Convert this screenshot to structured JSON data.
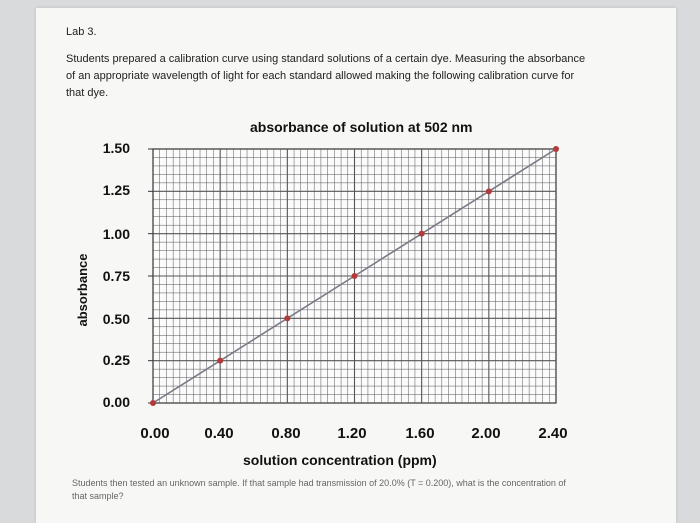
{
  "document": {
    "lab_title": "Lab 3.",
    "intro": "Students prepared a calibration curve using standard solutions of a certain dye. Measuring the absorbance of an appropriate wavelength of light for each standard allowed making the following calibration curve for that dye.",
    "question": "Students then tested an unknown sample. If that sample had transmission of 20.0% (T = 0.200), what is the concentration of that sample?"
  },
  "colors": {
    "line": "#7a7a86",
    "marker": "#b23a3a",
    "grid": "#555555"
  },
  "chart_data": {
    "type": "line",
    "title": "absorbance of solution at 502 nm",
    "xlabel": "solution concentration (ppm)",
    "ylabel": "absorbance",
    "xlim": [
      0,
      2.4
    ],
    "ylim": [
      0,
      1.5
    ],
    "x_ticks": [
      "0.00",
      "0.40",
      "0.80",
      "1.20",
      "1.60",
      "2.00",
      "2.40"
    ],
    "y_ticks": [
      "0.00",
      "0.25",
      "0.50",
      "0.75",
      "1.00",
      "1.25",
      "1.50"
    ],
    "grid": true,
    "series": [
      {
        "x": [
          0.0,
          0.4,
          0.8,
          1.2,
          1.6,
          2.0,
          2.4
        ],
        "y": [
          0.0,
          0.25,
          0.5,
          0.75,
          1.0,
          1.25,
          1.5
        ]
      }
    ]
  }
}
